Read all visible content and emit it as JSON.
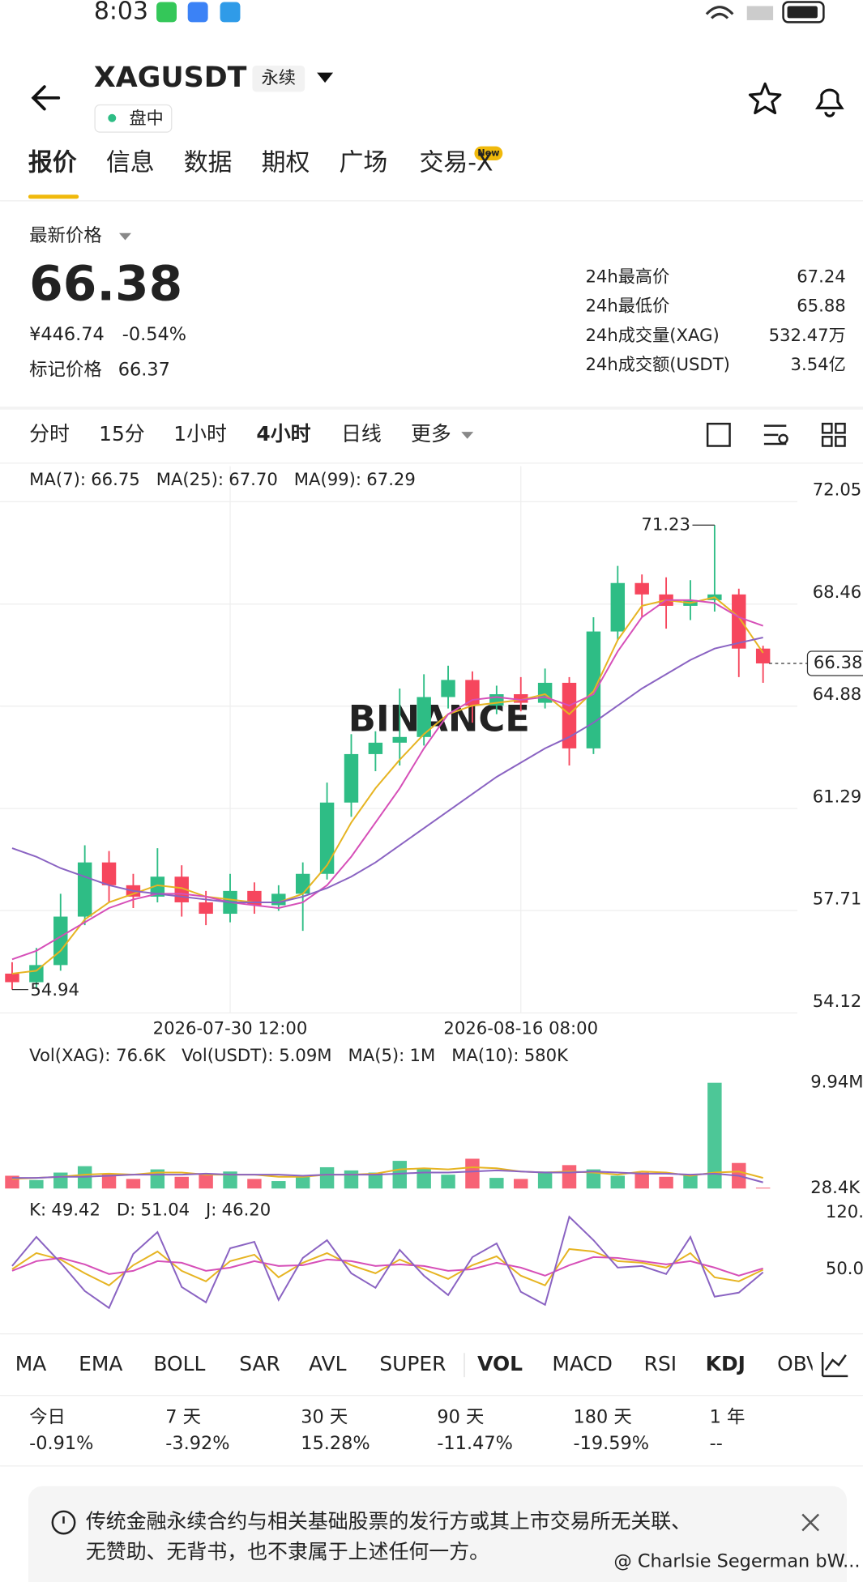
{
  "status_bar": {
    "time": "8:03"
  },
  "header": {
    "symbol": "XAGUSDT",
    "contract": "永续",
    "status": "盘中"
  },
  "tabs": [
    "报价",
    "信息",
    "数据",
    "期权",
    "广场",
    "交易-X"
  ],
  "active_tab": 0,
  "tab_badge": "New",
  "price_panel": {
    "label": "最新价格",
    "last": "66.38",
    "cny": "¥446.74",
    "change": "-0.54%",
    "mark_label": "标记价格",
    "mark": "66.37",
    "stats": [
      [
        "24h最高价",
        "67.24"
      ],
      [
        "24h最低价",
        "65.88"
      ],
      [
        "24h成交量(XAG)",
        "532.47万"
      ],
      [
        "24h成交额(USDT)",
        "3.54亿"
      ]
    ]
  },
  "intervals": [
    "分时",
    "15分",
    "1小时",
    "4小时",
    "日线",
    "更多"
  ],
  "active_interval": 3,
  "chart_data": [
    {
      "type": "candlestick",
      "chart_watermark": "BINANCE",
      "categories": [
        null,
        null,
        null,
        null,
        null,
        null,
        null,
        null,
        null,
        "2026-07-30 12:00",
        null,
        null,
        null,
        null,
        null,
        null,
        null,
        null,
        null,
        null,
        null,
        "2026-08-16 08:00",
        null,
        null,
        null,
        null,
        null,
        null,
        null,
        null,
        null,
        null
      ],
      "open": [
        55.5,
        55.2,
        55.8,
        57.5,
        59.4,
        58.6,
        58.2,
        58.9,
        58.0,
        57.6,
        58.4,
        57.9,
        58.3,
        59.0,
        61.5,
        63.2,
        63.6,
        63.8,
        65.2,
        65.8,
        64.9,
        65.3,
        65.0,
        65.7,
        63.4,
        67.5,
        69.2,
        68.8,
        68.4,
        68.6,
        68.8,
        66.9
      ],
      "high": [
        55.9,
        56.4,
        58.3,
        60.0,
        59.8,
        59.0,
        59.9,
        59.3,
        58.4,
        59.0,
        58.7,
        58.6,
        59.4,
        62.2,
        63.9,
        64.0,
        65.5,
        66.0,
        66.3,
        66.1,
        65.6,
        65.9,
        66.2,
        65.9,
        68.0,
        69.8,
        69.5,
        69.4,
        69.3,
        71.23,
        69.0,
        67.0
      ],
      "low": [
        54.94,
        55.0,
        55.6,
        57.2,
        58.0,
        57.8,
        58.0,
        57.5,
        57.2,
        57.3,
        57.6,
        57.7,
        57.0,
        58.8,
        61.0,
        62.6,
        62.8,
        63.5,
        64.8,
        64.3,
        64.6,
        64.7,
        64.8,
        62.8,
        63.2,
        67.2,
        68.0,
        67.6,
        67.9,
        68.2,
        65.9,
        65.7
      ],
      "close": [
        55.2,
        55.8,
        57.5,
        59.4,
        58.6,
        58.2,
        58.9,
        58.0,
        57.6,
        58.4,
        57.9,
        58.3,
        59.0,
        61.5,
        63.2,
        63.6,
        63.8,
        65.2,
        65.8,
        64.9,
        65.3,
        65.0,
        65.7,
        63.4,
        67.5,
        69.2,
        68.8,
        68.4,
        68.6,
        68.8,
        66.9,
        66.38
      ],
      "up_color": "#2ebd85",
      "down_color": "#f6465d",
      "high_label": 71.23,
      "low_label": 54.94,
      "series": [
        {
          "name": "MA(7):",
          "legend_value": "66.75",
          "color": "#e6b422",
          "values": [
            55.5,
            55.6,
            56.3,
            57.4,
            58.0,
            58.3,
            58.6,
            58.5,
            58.2,
            58.1,
            58.0,
            58.0,
            58.3,
            59.3,
            60.8,
            62.0,
            63.0,
            63.9,
            64.6,
            64.9,
            65.0,
            65.1,
            65.3,
            64.6,
            65.4,
            67.2,
            68.4,
            68.6,
            68.5,
            68.7,
            68.0,
            66.75
          ]
        },
        {
          "name": "MA(25):",
          "legend_value": "67.70",
          "color": "#d64fb8",
          "values": [
            56.0,
            56.3,
            56.8,
            57.3,
            57.8,
            58.1,
            58.3,
            58.3,
            58.2,
            58.0,
            57.9,
            57.8,
            58.0,
            58.6,
            59.6,
            60.8,
            62.0,
            63.4,
            64.6,
            65.1,
            65.2,
            65.1,
            65.2,
            64.9,
            65.3,
            66.8,
            68.0,
            68.6,
            68.6,
            68.5,
            68.0,
            67.7
          ]
        },
        {
          "name": "MA(99):",
          "legend_value": "67.29",
          "color": "#8a63c2",
          "values": [
            59.9,
            59.6,
            59.2,
            58.9,
            58.6,
            58.4,
            58.3,
            58.2,
            58.1,
            58.0,
            58.0,
            58.0,
            58.2,
            58.5,
            58.9,
            59.4,
            60.0,
            60.6,
            61.2,
            61.8,
            62.4,
            62.9,
            63.4,
            63.8,
            64.3,
            64.9,
            65.5,
            66.0,
            66.5,
            66.9,
            67.1,
            67.29
          ]
        }
      ],
      "ylim": [
        54.12,
        73.3
      ],
      "yticks": [
        72.05,
        68.46,
        64.88,
        61.29,
        57.71,
        54.12
      ],
      "grid": true
    },
    {
      "type": "bar",
      "header_items": [
        "Vol(XAG): 76.6K",
        "Vol(USDT): 5.09M"
      ],
      "values": [
        1200000,
        800000,
        1500000,
        2100000,
        1400000,
        900000,
        1800000,
        1100000,
        1300000,
        1600000,
        900000,
        700000,
        1200000,
        2000000,
        1700000,
        1500000,
        2600000,
        1900000,
        1300000,
        2800000,
        1000000,
        900000,
        1600000,
        2200000,
        1800000,
        1200000,
        1500000,
        1100000,
        1300000,
        9940000,
        2400000,
        76600
      ],
      "series": [
        {
          "name": "MA(5):",
          "legend_value": "1M",
          "color": "#e6b422",
          "values": [
            900000,
            1000000,
            1100000,
            1300000,
            1400000,
            1300000,
            1500000,
            1500000,
            1300000,
            1300000,
            1300000,
            1100000,
            1100000,
            1300000,
            1300000,
            1400000,
            1800000,
            1900000,
            1800000,
            2000000,
            1900000,
            1600000,
            1500000,
            1600000,
            1500000,
            1300000,
            1600000,
            1500000,
            1200000,
            1500000,
            1600000,
            1000000
          ]
        },
        {
          "name": "MA(10):",
          "legend_value": "580K",
          "color": "#8a63c2",
          "values": [
            1000000,
            1000000,
            1100000,
            1100000,
            1200000,
            1300000,
            1300000,
            1300000,
            1400000,
            1300000,
            1300000,
            1300000,
            1200000,
            1300000,
            1300000,
            1300000,
            1400000,
            1500000,
            1500000,
            1600000,
            1700000,
            1600000,
            1500000,
            1500000,
            1600000,
            1500000,
            1400000,
            1400000,
            1300000,
            1400000,
            1200000,
            580000
          ]
        }
      ],
      "ylim": [
        0,
        11000000
      ],
      "yticks": [
        {
          "value": 9940000,
          "label": "9.94M"
        },
        {
          "value": 28400,
          "label": "28.4K"
        }
      ],
      "grid": false
    },
    {
      "type": "line",
      "series": [
        {
          "name": "K:",
          "legend_value": "49.42",
          "color": "#e6b422",
          "values": [
            50,
            70,
            62,
            45,
            30,
            55,
            72,
            48,
            35,
            60,
            68,
            40,
            58,
            70,
            55,
            45,
            62,
            50,
            38,
            55,
            66,
            42,
            30,
            75,
            72,
            60,
            58,
            52,
            70,
            40,
            35,
            49.42
          ]
        },
        {
          "name": "D:",
          "legend_value": "51.04",
          "color": "#d64fb8",
          "values": [
            48,
            60,
            64,
            56,
            44,
            48,
            60,
            58,
            48,
            52,
            60,
            54,
            55,
            62,
            60,
            54,
            56,
            54,
            48,
            50,
            58,
            52,
            42,
            55,
            65,
            64,
            60,
            56,
            60,
            52,
            42,
            51.04
          ]
        },
        {
          "name": "J:",
          "legend_value": "46.20",
          "color": "#8a63c2",
          "values": [
            54,
            90,
            58,
            23,
            2,
            69,
            96,
            28,
            9,
            76,
            84,
            12,
            64,
            86,
            45,
            27,
            74,
            42,
            18,
            65,
            82,
            22,
            6,
            115,
            86,
            52,
            54,
            44,
            90,
            16,
            21,
            46.2
          ]
        }
      ],
      "ylim": [
        -27.5,
        135
      ],
      "yticks": [
        {
          "value": 120,
          "label": "120.0"
        },
        {
          "value": 50,
          "label": "50.0"
        }
      ],
      "grid": false
    }
  ],
  "indicators": [
    "MA",
    "EMA",
    "BOLL",
    "SAR",
    "AVL",
    "SUPER",
    "VOL",
    "MACD",
    "RSI",
    "KDJ",
    "OBV"
  ],
  "selected_indicators": [
    6,
    9
  ],
  "performance": [
    {
      "period": "今日",
      "change": "-0.91%"
    },
    {
      "period": "7 天",
      "change": "-3.92%"
    },
    {
      "period": "30 天",
      "change": "15.28%"
    },
    {
      "period": "90 天",
      "change": "-11.47%"
    },
    {
      "period": "180 天",
      "change": "-19.59%"
    },
    {
      "period": "1 年",
      "change": "--"
    }
  ],
  "disclaimer": [
    "传统金融永续合约与相关基础股票的发行方或其上市交易所无关联、",
    "无赞助、无背书，也不隶属于上述任何一方。"
  ],
  "watermark": "@ Charlsie Segerman bW..."
}
